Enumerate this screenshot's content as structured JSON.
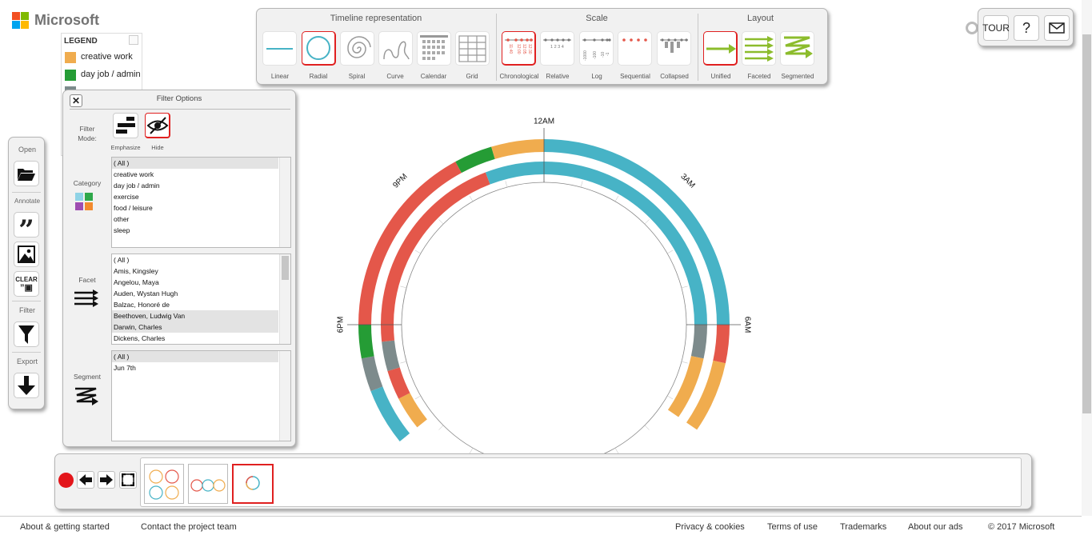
{
  "brand": {
    "name": "Microsoft"
  },
  "legend": {
    "title": "LEGEND",
    "items": [
      {
        "label": "creative work",
        "color": "#f0ac4e"
      },
      {
        "label": "day job / admin",
        "color": "#259c35"
      }
    ]
  },
  "toolbar": {
    "representation": {
      "title": "Timeline representation",
      "options": [
        {
          "label": "Linear",
          "icon": "linear-icon",
          "selected": false
        },
        {
          "label": "Radial",
          "icon": "radial-icon",
          "selected": true
        },
        {
          "label": "Spiral",
          "icon": "spiral-icon",
          "selected": false
        },
        {
          "label": "Curve",
          "icon": "curve-icon",
          "selected": false
        },
        {
          "label": "Calendar",
          "icon": "calendar-icon",
          "selected": false
        },
        {
          "label": "Grid",
          "icon": "grid-icon",
          "selected": false
        }
      ]
    },
    "scale": {
      "title": "Scale",
      "options": [
        {
          "label": "Chronological",
          "icon": "chronological-icon",
          "selected": true
        },
        {
          "label": "Relative",
          "icon": "relative-icon",
          "selected": false
        },
        {
          "label": "Log",
          "icon": "log-icon",
          "selected": false
        },
        {
          "label": "Sequential",
          "icon": "sequential-icon",
          "selected": false
        },
        {
          "label": "Collapsed",
          "icon": "collapsed-icon",
          "selected": false
        }
      ]
    },
    "layout": {
      "title": "Layout",
      "options": [
        {
          "label": "Unified",
          "icon": "unified-icon",
          "selected": true
        },
        {
          "label": "Faceted",
          "icon": "faceted-icon",
          "selected": false
        },
        {
          "label": "Segmented",
          "icon": "segmented-icon",
          "selected": false
        }
      ]
    }
  },
  "top_right": {
    "tour": "TOUR",
    "help": "?"
  },
  "sidebar": {
    "open": "Open",
    "annotate": "Annotate",
    "clear": "CLEAR",
    "filter": "Filter",
    "export": "Export"
  },
  "filter": {
    "title": "Filter Options",
    "mode_label": "Filter\nMode:",
    "emphasize": "Emphasize",
    "hide": "Hide",
    "category_label": "Category",
    "categories": [
      "( All )",
      "creative work",
      "day job / admin",
      "exercise",
      "food / leisure",
      "other",
      "sleep"
    ],
    "facet_label": "Facet",
    "facets": [
      "( All )",
      "Amis, Kingsley",
      "Angelou, Maya",
      "Auden, Wystan Hugh",
      "Balzac, Honoré de",
      "Beethoven, Ludwig Van",
      "Darwin, Charles",
      "Dickens, Charles"
    ],
    "segment_label": "Segment",
    "segments": [
      "( All )",
      "Jun 7th"
    ]
  },
  "chart_data": {
    "type": "radial",
    "hour_labels": [
      "12AM",
      "3AM",
      "6AM",
      "9PM",
      "6PM"
    ],
    "category_colors": {
      "creative work": "#f0ac4e",
      "day job / admin": "#259c35",
      "exercise": "#7d8b8c",
      "food / leisure": "#e4574a",
      "sleep": "#47b3c6"
    },
    "rings": [
      {
        "segments": [
          {
            "start_hour": 0,
            "end_hour": 6,
            "category": "sleep"
          },
          {
            "start_hour": 6,
            "end_hour": 6.8,
            "category": "food / leisure"
          },
          {
            "start_hour": 6.8,
            "end_hour": 8.3,
            "category": "creative work"
          },
          {
            "start_hour": 15.4,
            "end_hour": 16.6,
            "category": "sleep"
          },
          {
            "start_hour": 16.6,
            "end_hour": 17.3,
            "category": "exercise"
          },
          {
            "start_hour": 17.3,
            "end_hour": 18,
            "category": "day job / admin"
          },
          {
            "start_hour": 18,
            "end_hour": 22.1,
            "category": "food / leisure"
          },
          {
            "start_hour": 22.1,
            "end_hour": 22.9,
            "category": "day job / admin"
          },
          {
            "start_hour": 22.9,
            "end_hour": 24,
            "category": "creative work"
          }
        ]
      },
      {
        "segments": [
          {
            "start_hour": 0,
            "end_hour": 6,
            "category": "sleep"
          },
          {
            "start_hour": 6,
            "end_hour": 6.8,
            "category": "exercise"
          },
          {
            "start_hour": 6.8,
            "end_hour": 8.3,
            "category": "creative work"
          },
          {
            "start_hour": 15.4,
            "end_hour": 16.2,
            "category": "creative work"
          },
          {
            "start_hour": 16.2,
            "end_hour": 16.9,
            "category": "food / leisure"
          },
          {
            "start_hour": 16.9,
            "end_hour": 17.6,
            "category": "exercise"
          },
          {
            "start_hour": 17.6,
            "end_hour": 22.6,
            "category": "food / leisure"
          },
          {
            "start_hour": 22.6,
            "end_hour": 24,
            "category": "sleep"
          }
        ]
      }
    ]
  },
  "footer": {
    "about": "About & getting started",
    "contact": "Contact the project team",
    "privacy": "Privacy & cookies",
    "terms": "Terms of use",
    "trademarks": "Trademarks",
    "ads": "About our ads",
    "copyright": "© 2017 Microsoft"
  }
}
